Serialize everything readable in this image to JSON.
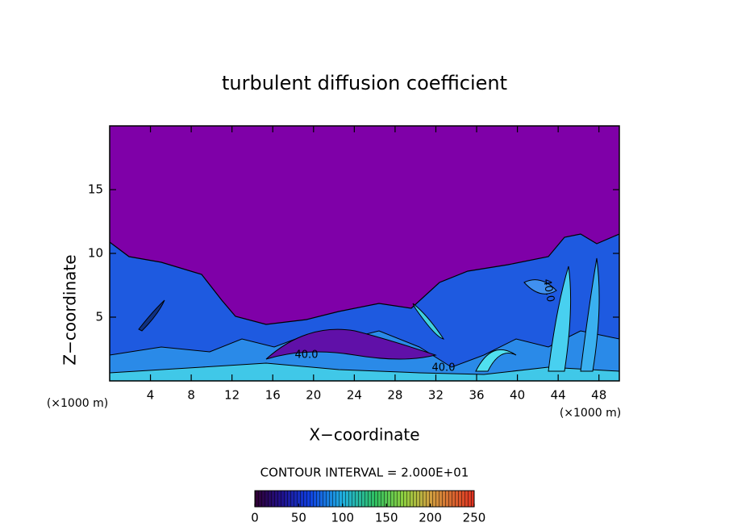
{
  "chart_data": {
    "type": "contour",
    "title": "turbulent diffusion coefficient",
    "xlabel": "X−coordinate",
    "ylabel": "Z−coordinate",
    "x_unit_left": "(×1000 m)",
    "x_unit_right": "(×1000 m)",
    "xlim": [
      0,
      50
    ],
    "xticks": [
      4,
      8,
      12,
      16,
      20,
      24,
      28,
      32,
      36,
      40,
      44,
      48
    ],
    "ylim": [
      0,
      20
    ],
    "yticks": [
      5,
      10,
      15
    ],
    "contour_labels": [
      "40.0",
      "40.0",
      "40.0"
    ],
    "contour_interval_text": "CONTOUR INTERVAL = 2.000E+01",
    "clim": [
      0,
      250
    ],
    "colorbar_ticks": [
      0,
      50,
      100,
      150,
      200,
      250
    ],
    "background_color": "#7f00a8"
  }
}
